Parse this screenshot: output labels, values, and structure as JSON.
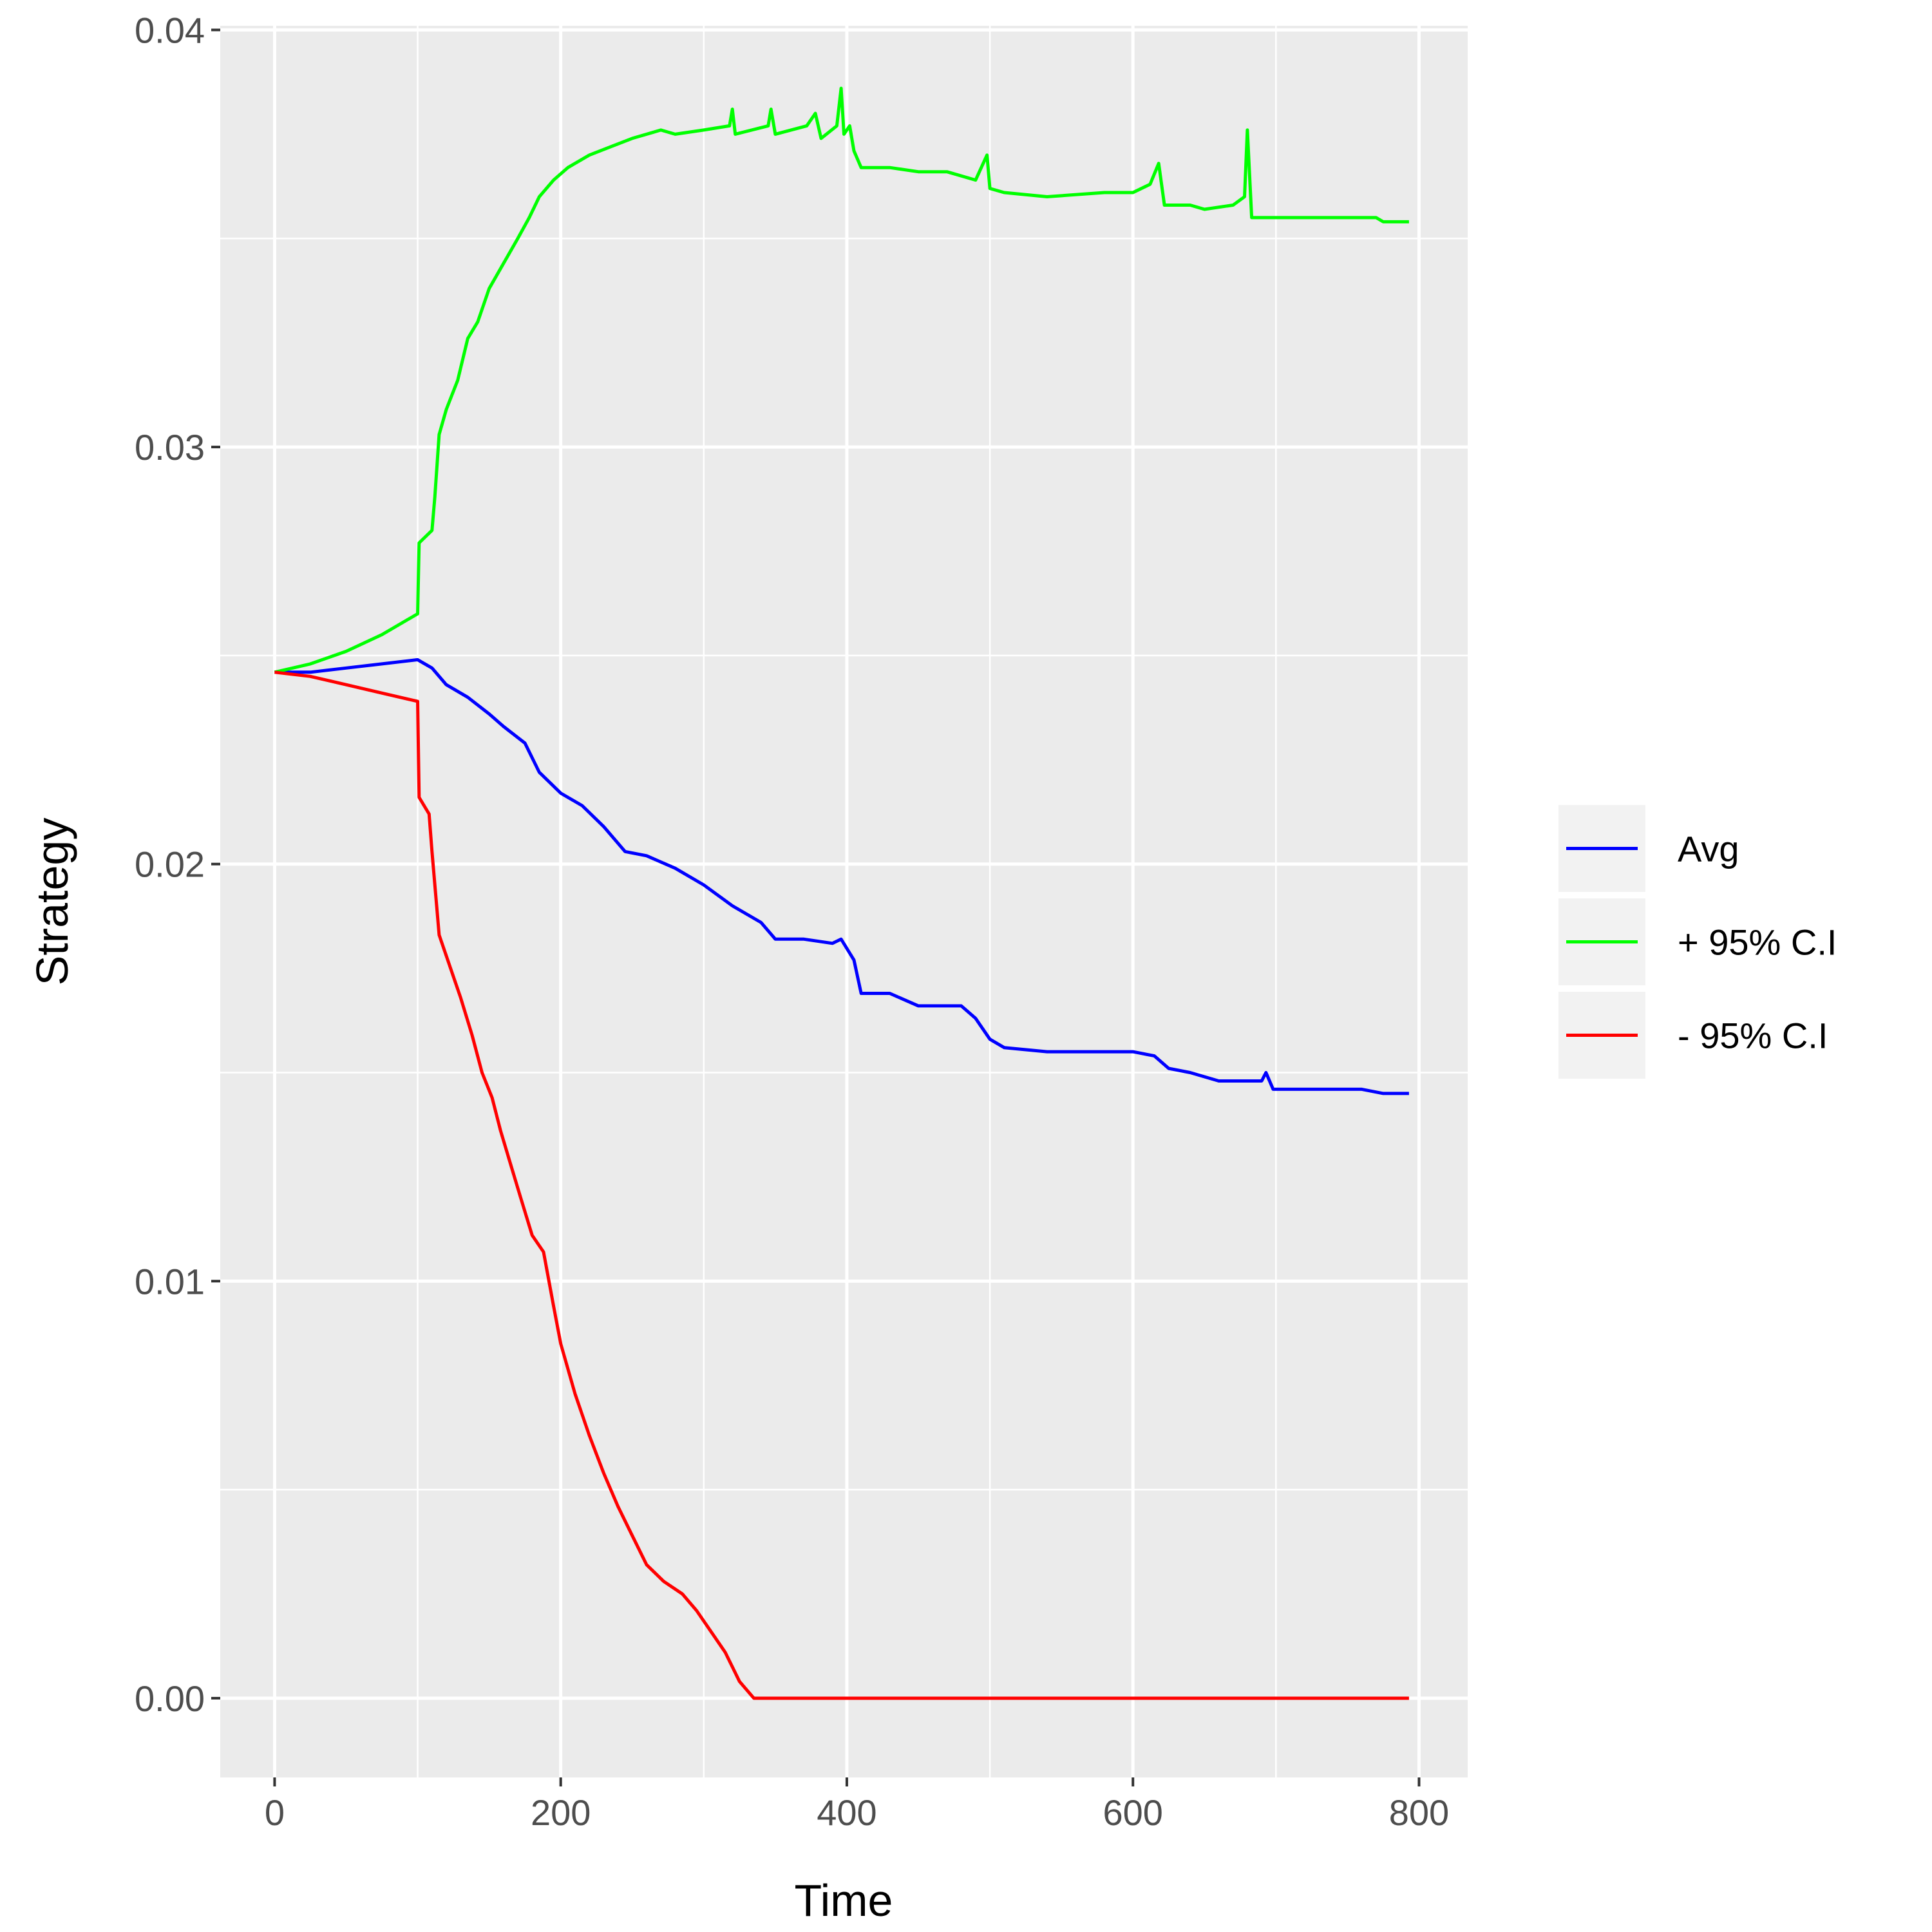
{
  "chart_data": {
    "type": "line",
    "title": "",
    "xlabel": "Time",
    "ylabel": "Strategy",
    "xlim": [
      -38,
      834
    ],
    "ylim": [
      -0.0019,
      0.0401
    ],
    "x_ticks": [
      0,
      200,
      400,
      600,
      800
    ],
    "x_tick_labels": [
      "0",
      "200",
      "400",
      "600",
      "800"
    ],
    "y_ticks": [
      0.0,
      0.01,
      0.02,
      0.03,
      0.04
    ],
    "y_tick_labels": [
      "0.00",
      "0.01",
      "0.02",
      "0.03",
      "0.04"
    ],
    "grid": true,
    "legend_position": "right",
    "series": [
      {
        "name": "Avg",
        "color": "#0000ff",
        "points": [
          [
            0,
            0.0246
          ],
          [
            25,
            0.0246
          ],
          [
            50,
            0.0247
          ],
          [
            75,
            0.0248
          ],
          [
            100,
            0.0249
          ],
          [
            110,
            0.0247
          ],
          [
            120,
            0.0243
          ],
          [
            135,
            0.024
          ],
          [
            150,
            0.0236
          ],
          [
            160,
            0.0233
          ],
          [
            175,
            0.0229
          ],
          [
            185,
            0.0222
          ],
          [
            200,
            0.0217
          ],
          [
            215,
            0.0214
          ],
          [
            230,
            0.0209
          ],
          [
            245,
            0.0203
          ],
          [
            260,
            0.0202
          ],
          [
            280,
            0.0199
          ],
          [
            300,
            0.0195
          ],
          [
            320,
            0.019
          ],
          [
            340,
            0.0186
          ],
          [
            350,
            0.0182
          ],
          [
            370,
            0.0182
          ],
          [
            390,
            0.0181
          ],
          [
            396,
            0.0182
          ],
          [
            405,
            0.0177
          ],
          [
            410,
            0.0169
          ],
          [
            430,
            0.0169
          ],
          [
            450,
            0.0166
          ],
          [
            480,
            0.0166
          ],
          [
            490,
            0.0163
          ],
          [
            500,
            0.0158
          ],
          [
            510,
            0.0156
          ],
          [
            540,
            0.0155
          ],
          [
            600,
            0.0155
          ],
          [
            615,
            0.0154
          ],
          [
            625,
            0.0151
          ],
          [
            640,
            0.015
          ],
          [
            660,
            0.0148
          ],
          [
            690,
            0.0148
          ],
          [
            693,
            0.015
          ],
          [
            698,
            0.0146
          ],
          [
            760,
            0.0146
          ],
          [
            775,
            0.0145
          ],
          [
            793,
            0.0145
          ]
        ]
      },
      {
        "name": "+ 95% C.I",
        "color": "#00ff00",
        "points": [
          [
            0,
            0.0246
          ],
          [
            25,
            0.0248
          ],
          [
            50,
            0.0251
          ],
          [
            75,
            0.0255
          ],
          [
            100,
            0.026
          ],
          [
            101,
            0.0277
          ],
          [
            110,
            0.028
          ],
          [
            112,
            0.0288
          ],
          [
            115,
            0.0303
          ],
          [
            120,
            0.0309
          ],
          [
            128,
            0.0316
          ],
          [
            135,
            0.0326
          ],
          [
            142,
            0.033
          ],
          [
            150,
            0.0338
          ],
          [
            160,
            0.0344
          ],
          [
            170,
            0.035
          ],
          [
            178,
            0.0355
          ],
          [
            185,
            0.036
          ],
          [
            195,
            0.0364
          ],
          [
            205,
            0.0367
          ],
          [
            220,
            0.037
          ],
          [
            235,
            0.0372
          ],
          [
            250,
            0.0374
          ],
          [
            270,
            0.0376
          ],
          [
            280,
            0.0375
          ],
          [
            300,
            0.0376
          ],
          [
            318,
            0.0377
          ],
          [
            320,
            0.0381
          ],
          [
            322,
            0.0375
          ],
          [
            345,
            0.0377
          ],
          [
            347,
            0.0381
          ],
          [
            350,
            0.0375
          ],
          [
            372,
            0.0377
          ],
          [
            378,
            0.038
          ],
          [
            382,
            0.0374
          ],
          [
            393,
            0.0377
          ],
          [
            396,
            0.0386
          ],
          [
            398,
            0.0375
          ],
          [
            402,
            0.0377
          ],
          [
            405,
            0.0371
          ],
          [
            410,
            0.0367
          ],
          [
            430,
            0.0367
          ],
          [
            450,
            0.0366
          ],
          [
            470,
            0.0366
          ],
          [
            490,
            0.0364
          ],
          [
            498,
            0.037
          ],
          [
            500,
            0.0362
          ],
          [
            510,
            0.0361
          ],
          [
            540,
            0.036
          ],
          [
            580,
            0.0361
          ],
          [
            600,
            0.0361
          ],
          [
            612,
            0.0363
          ],
          [
            618,
            0.0368
          ],
          [
            622,
            0.0358
          ],
          [
            640,
            0.0358
          ],
          [
            650,
            0.0357
          ],
          [
            670,
            0.0358
          ],
          [
            678,
            0.036
          ],
          [
            680,
            0.0376
          ],
          [
            683,
            0.0355
          ],
          [
            700,
            0.0355
          ],
          [
            770,
            0.0355
          ],
          [
            775,
            0.0354
          ],
          [
            793,
            0.0354
          ]
        ]
      },
      {
        "name": "- 95% C.I",
        "color": "#ff0000",
        "points": [
          [
            0,
            0.0246
          ],
          [
            25,
            0.0245
          ],
          [
            50,
            0.0243
          ],
          [
            75,
            0.0241
          ],
          [
            100,
            0.0239
          ],
          [
            101,
            0.0216
          ],
          [
            108,
            0.0212
          ],
          [
            110,
            0.0203
          ],
          [
            115,
            0.0183
          ],
          [
            122,
            0.0176
          ],
          [
            130,
            0.0168
          ],
          [
            138,
            0.0159
          ],
          [
            145,
            0.015
          ],
          [
            152,
            0.0144
          ],
          [
            158,
            0.0136
          ],
          [
            165,
            0.0128
          ],
          [
            172,
            0.012
          ],
          [
            180,
            0.0111
          ],
          [
            188,
            0.0107
          ],
          [
            195,
            0.0094
          ],
          [
            200,
            0.0085
          ],
          [
            210,
            0.0073
          ],
          [
            220,
            0.0063
          ],
          [
            230,
            0.0054
          ],
          [
            240,
            0.0046
          ],
          [
            250,
            0.0039
          ],
          [
            260,
            0.0032
          ],
          [
            272,
            0.0028
          ],
          [
            285,
            0.0025
          ],
          [
            295,
            0.0021
          ],
          [
            305,
            0.0016
          ],
          [
            315,
            0.0011
          ],
          [
            325,
            0.0004
          ],
          [
            335,
            0.0
          ],
          [
            793,
            0.0
          ]
        ]
      }
    ]
  }
}
